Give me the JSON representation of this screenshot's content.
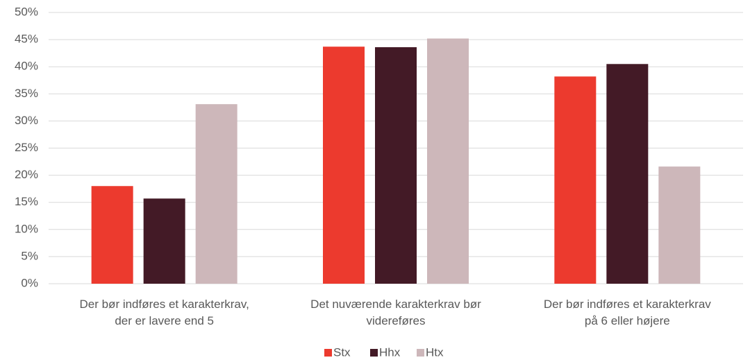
{
  "chart_data": {
    "type": "bar",
    "categories": [
      "Der bør indføres et karakterkrav,\nder er lavere end 5",
      "Det nuværende karakterkrav bør\nvidereføres",
      "Der bør indføres et karakterkrav\npå 6 eller højere"
    ],
    "series": [
      {
        "name": "Stx",
        "color": "#ec3a2e",
        "values": [
          18.0,
          43.7,
          38.2
        ]
      },
      {
        "name": "Hhx",
        "color": "#431a26",
        "values": [
          15.7,
          43.6,
          40.5
        ]
      },
      {
        "name": "Htx",
        "color": "#cdb7ba",
        "values": [
          33.1,
          45.2,
          21.6
        ]
      }
    ],
    "ylim": [
      0,
      50
    ],
    "yticks": [
      {
        "value": 0,
        "label": "0%"
      },
      {
        "value": 5,
        "label": "5%"
      },
      {
        "value": 10,
        "label": "10%"
      },
      {
        "value": 15,
        "label": "15%"
      },
      {
        "value": 20,
        "label": "20%"
      },
      {
        "value": 25,
        "label": "25%"
      },
      {
        "value": 30,
        "label": "30%"
      },
      {
        "value": 35,
        "label": "35%"
      },
      {
        "value": 40,
        "label": "40%"
      },
      {
        "value": 45,
        "label": "45%"
      },
      {
        "value": 50,
        "label": "50%"
      }
    ],
    "grid": true,
    "legend": "bottom"
  }
}
